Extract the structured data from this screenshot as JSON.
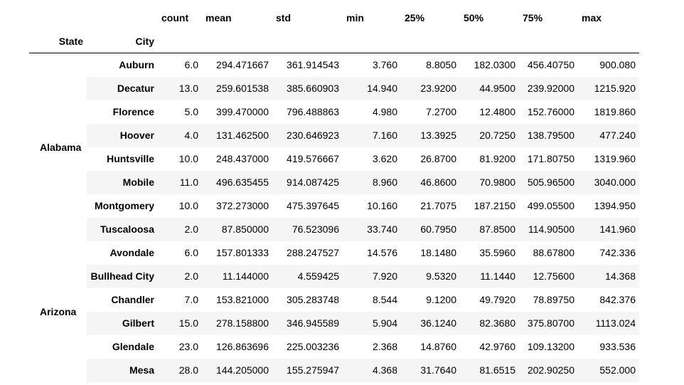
{
  "columns": [
    "count",
    "mean",
    "std",
    "min",
    "25%",
    "50%",
    "75%",
    "max"
  ],
  "index_names": {
    "state": "State",
    "city": "City"
  },
  "rows": [
    {
      "state": "Alabama",
      "city": "Auburn",
      "values": [
        "6.0",
        "294.471667",
        "361.914543",
        "3.760",
        "8.8050",
        "182.0300",
        "456.40750",
        "900.080"
      ]
    },
    {
      "state": "",
      "city": "Decatur",
      "values": [
        "13.0",
        "259.601538",
        "385.660903",
        "14.940",
        "23.9200",
        "44.9500",
        "239.92000",
        "1215.920"
      ]
    },
    {
      "state": "",
      "city": "Florence",
      "values": [
        "5.0",
        "399.470000",
        "796.488863",
        "4.980",
        "7.2700",
        "12.4800",
        "152.76000",
        "1819.860"
      ]
    },
    {
      "state": "",
      "city": "Hoover",
      "values": [
        "4.0",
        "131.462500",
        "230.646923",
        "7.160",
        "13.3925",
        "20.7250",
        "138.79500",
        "477.240"
      ]
    },
    {
      "state": "",
      "city": "Huntsville",
      "values": [
        "10.0",
        "248.437000",
        "419.576667",
        "3.620",
        "26.8700",
        "81.9200",
        "171.80750",
        "1319.960"
      ]
    },
    {
      "state": "",
      "city": "Mobile",
      "values": [
        "11.0",
        "496.635455",
        "914.087425",
        "8.960",
        "46.8600",
        "70.9800",
        "505.96500",
        "3040.000"
      ]
    },
    {
      "state": "",
      "city": "Montgomery",
      "values": [
        "10.0",
        "372.273000",
        "475.397645",
        "10.160",
        "21.7075",
        "187.2150",
        "499.05500",
        "1394.950"
      ]
    },
    {
      "state": "",
      "city": "Tuscaloosa",
      "values": [
        "2.0",
        "87.850000",
        "76.523096",
        "33.740",
        "60.7950",
        "87.8500",
        "114.90500",
        "141.960"
      ]
    },
    {
      "state": "Arizona",
      "city": "Avondale",
      "values": [
        "6.0",
        "157.801333",
        "288.247527",
        "14.576",
        "18.1480",
        "35.5960",
        "88.67800",
        "742.336"
      ]
    },
    {
      "state": "",
      "city": "Bullhead City",
      "values": [
        "2.0",
        "11.144000",
        "4.559425",
        "7.920",
        "9.5320",
        "11.1440",
        "12.75600",
        "14.368"
      ]
    },
    {
      "state": "",
      "city": "Chandler",
      "values": [
        "7.0",
        "153.821000",
        "305.283748",
        "8.544",
        "9.1200",
        "49.7920",
        "78.89750",
        "842.376"
      ]
    },
    {
      "state": "",
      "city": "Gilbert",
      "values": [
        "15.0",
        "278.158800",
        "346.945589",
        "5.904",
        "36.1240",
        "82.3680",
        "375.80700",
        "1113.024"
      ]
    },
    {
      "state": "",
      "city": "Glendale",
      "values": [
        "23.0",
        "126.863696",
        "225.003236",
        "2.368",
        "14.8760",
        "42.9760",
        "109.13200",
        "933.536"
      ]
    },
    {
      "state": "",
      "city": "Mesa",
      "values": [
        "28.0",
        "144.205000",
        "155.275947",
        "4.368",
        "31.7640",
        "81.6515",
        "202.90250",
        "552.000"
      ]
    }
  ]
}
